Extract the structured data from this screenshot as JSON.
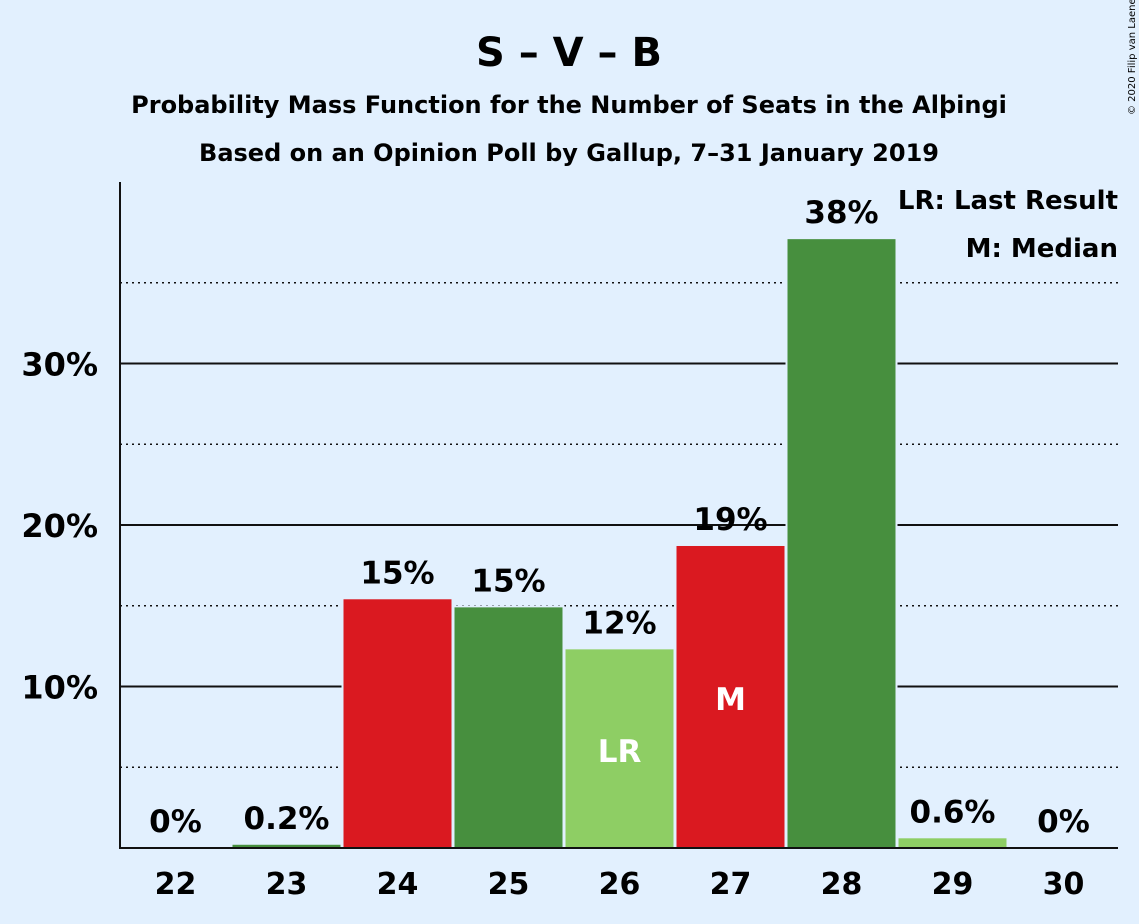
{
  "chart_data": {
    "type": "bar",
    "title": "S – V – B",
    "subtitle": [
      "Probability Mass Function for the Number of Seats in the Alþingi",
      "Based on an Opinion Poll by Gallup, 7–31 January 2019"
    ],
    "categories": [
      "22",
      "23",
      "24",
      "25",
      "26",
      "27",
      "28",
      "29",
      "30"
    ],
    "values": [
      0,
      0.2,
      15.4,
      14.9,
      12.3,
      18.7,
      37.7,
      0.6,
      0
    ],
    "data_labels": [
      "0%",
      "0.2%",
      "15%",
      "15%",
      "12%",
      "19%",
      "38%",
      "0.6%",
      "0%"
    ],
    "bar_colors": [
      "#8ece64",
      "#478f3e",
      "#da1920",
      "#478f3e",
      "#8ece64",
      "#da1920",
      "#478f3e",
      "#8ece64",
      "#da1920"
    ],
    "bar_annotations": {
      "26": "LR",
      "27": "M"
    },
    "yticks": [
      10,
      20,
      30
    ],
    "ytick_labels": [
      "10%",
      "20%",
      "30%"
    ],
    "minor_gridlines": [
      5,
      15,
      25,
      35
    ],
    "ylim": [
      0,
      41
    ],
    "legend": [
      "LR: Last Result",
      "M: Median"
    ],
    "legend_position": "top-right",
    "copyright": "© 2020 Filip van Laenen"
  }
}
